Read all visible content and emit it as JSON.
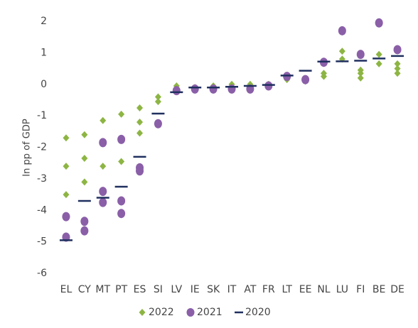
{
  "chart_data": {
    "type": "strip",
    "y_label": "In pp of GDP",
    "categories": [
      "EL",
      "CY",
      "MT",
      "PT",
      "ES",
      "SI",
      "LV",
      "IE",
      "SK",
      "IT",
      "AT",
      "FR",
      "LT",
      "EE",
      "NL",
      "LU",
      "FI",
      "BE",
      "DE"
    ],
    "series": [
      {
        "name": "2022",
        "color": "#8db543",
        "marker": "diamond",
        "values": [
          [
            -1.7,
            -2.6,
            -3.5
          ],
          [
            -1.6,
            -2.35,
            -3.1
          ],
          [
            -1.15,
            -1.85,
            -2.6
          ],
          [
            -0.95,
            -1.75,
            -2.45
          ],
          [
            -0.75,
            -1.2,
            -1.55
          ],
          [
            -0.4,
            -0.55
          ],
          [
            -0.05
          ],
          [
            -0.1
          ],
          [
            -0.05
          ],
          [
            0
          ],
          [
            0
          ],
          [
            0
          ],
          [
            0.15
          ],
          [
            0.1
          ],
          [
            0.25,
            0.35
          ],
          [
            0.8,
            1.05
          ],
          [
            0.2,
            0.35,
            0.45
          ],
          [
            0.65,
            0.95
          ],
          [
            0.35,
            0.5,
            0.65
          ]
        ]
      },
      {
        "name": "2021",
        "color": "#8a5fa8",
        "marker": "circle",
        "values": [
          [
            -4.2,
            -4.85
          ],
          [
            -4.35,
            -4.65
          ],
          [
            -1.85,
            -3.4,
            -3.75
          ],
          [
            -1.75,
            -3.7,
            -4.1
          ],
          [
            -2.65,
            -2.75
          ],
          [
            -1.25
          ],
          [
            -0.2
          ],
          [
            -0.15
          ],
          [
            -0.15
          ],
          [
            -0.15
          ],
          [
            -0.15
          ],
          [
            -0.05
          ],
          [
            0.25
          ],
          [
            0.15
          ],
          [
            0.7
          ],
          [
            1.7
          ],
          [
            0.95
          ],
          [
            1.95
          ],
          [
            1.1
          ]
        ]
      },
      {
        "name": "2020",
        "color": "#1f2f5e",
        "marker": "dash",
        "values": [
          -4.95,
          -3.7,
          -3.6,
          -3.25,
          -2.3,
          -0.93,
          -0.25,
          -0.1,
          -0.1,
          -0.08,
          -0.05,
          -0.02,
          0.28,
          0.43,
          0.72,
          0.73,
          0.75,
          0.82,
          0.9
        ]
      }
    ],
    "ylim": [
      -6,
      2
    ],
    "yticks": [
      -6,
      -5,
      -4,
      -3,
      -2,
      -1,
      0,
      1,
      2
    ],
    "grid": false,
    "legend": "bottom"
  }
}
